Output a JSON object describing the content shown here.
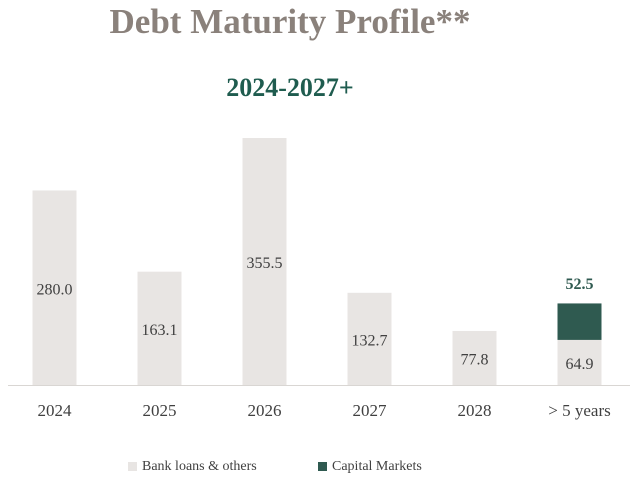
{
  "chart_data": {
    "type": "stacked_bar",
    "title": "Debt Maturity Profile**",
    "subtitle": "2024-2027+",
    "categories": [
      "2024",
      "2025",
      "2026",
      "2027",
      "2028",
      "> 5 years"
    ],
    "series": [
      {
        "name": "Bank loans & others",
        "color": "#e8e5e3",
        "values": [
          280.0,
          163.1,
          355.5,
          132.7,
          77.8,
          64.9
        ],
        "value_labels": [
          "280.0",
          "163.1",
          "355.5",
          "132.7",
          "77.8",
          "64.9"
        ]
      },
      {
        "name": "Capital Markets",
        "color": "#2f5a50",
        "values": [
          null,
          null,
          null,
          null,
          null,
          52.5
        ]
      }
    ]
  }
}
